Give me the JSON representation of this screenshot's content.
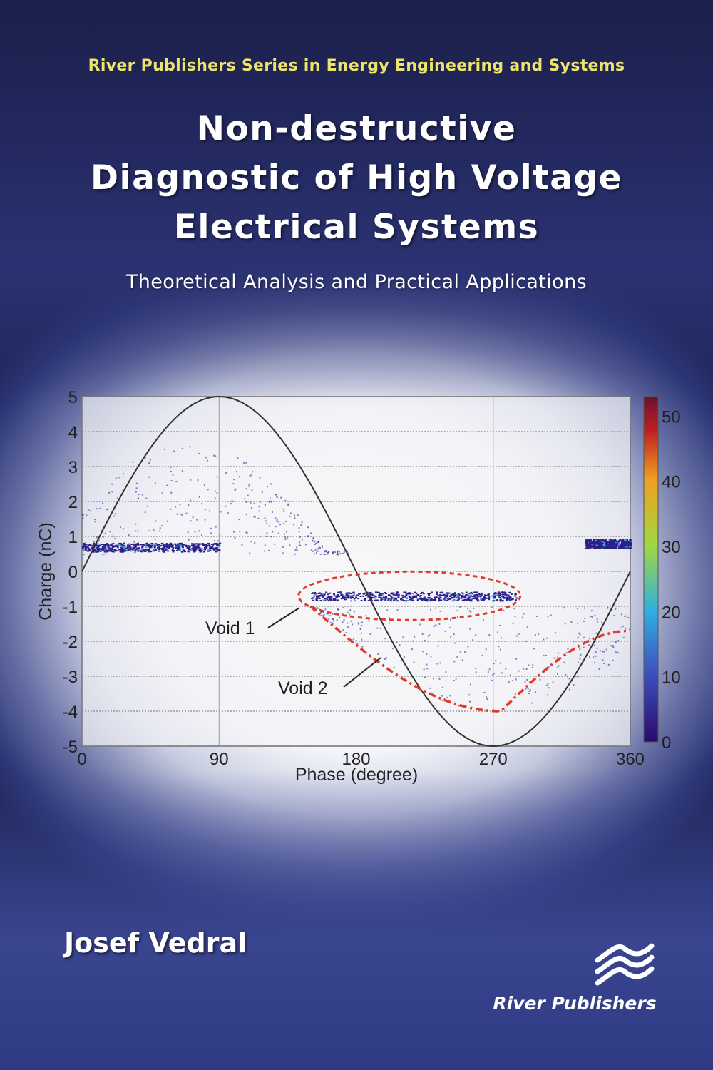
{
  "cover": {
    "series": "River Publishers Series in Energy Engineering and Systems",
    "title_lines": [
      "Non-destructive",
      "Diagnostic of High Voltage",
      "Electrical Systems"
    ],
    "subtitle": "Theoretical Analysis and Practical Applications",
    "author": "Josef Vedral",
    "publisher": "River Publishers",
    "colors": {
      "series_text": "#ece46c",
      "background": "#2a3272",
      "sine": "#333333",
      "annotation": "#e03a2a",
      "points": "#3a2a9a"
    }
  },
  "chart_data": {
    "type": "scatter",
    "xlabel": "Phase (degree)",
    "ylabel": "Charge (nC)",
    "xlim": [
      0,
      360
    ],
    "ylim": [
      -5,
      5
    ],
    "xticks": [
      "0",
      "90",
      "180",
      "270",
      "360"
    ],
    "yticks": [
      "5",
      "4",
      "3",
      "2",
      "1",
      "0",
      "-1",
      "-2",
      "-3",
      "-4",
      "-5"
    ],
    "grid": true,
    "reference_curve": {
      "type": "sine",
      "amplitude": 5
    },
    "dense_bands": [
      {
        "x": [
          0,
          90
        ],
        "y": 0.7
      },
      {
        "x": [
          150,
          285
        ],
        "y": -0.7
      },
      {
        "x": [
          330,
          360
        ],
        "y": 0.8
      }
    ],
    "sparse_regions": [
      {
        "x": [
          0,
          180
        ],
        "y": [
          0.5,
          3.9
        ]
      },
      {
        "x": [
          150,
          360
        ],
        "y": [
          -4,
          -1
        ]
      }
    ],
    "annotations": [
      {
        "text": "Void 1",
        "target": "ellipse around the negative band at -0.7 nC, 145–285°"
      },
      {
        "text": "Void 2",
        "target": "dashed envelope from 150° to 360°, minimum -4 nC near 270°"
      }
    ],
    "colorbar": {
      "ticks": [
        "0",
        "10",
        "20",
        "30",
        "40",
        "50"
      ],
      "range": [
        0,
        53
      ]
    }
  }
}
